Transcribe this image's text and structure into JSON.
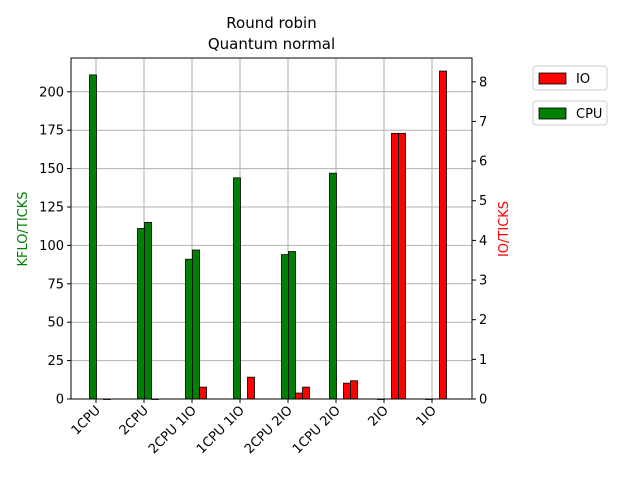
{
  "chart_data": {
    "type": "bar",
    "title": [
      "Round robin",
      "Quantum normal"
    ],
    "ylabel_left": "KFLO/TICKS",
    "ylabel_right": "IO/TICKS",
    "left_color": "#008000",
    "right_color": "#ff0000",
    "ylim_left": [
      0,
      222
    ],
    "ylim_right": [
      0,
      8.6
    ],
    "yticks_left": [
      0,
      25,
      50,
      75,
      100,
      125,
      150,
      175,
      200
    ],
    "yticks_right": [
      0,
      1,
      2,
      3,
      4,
      5,
      6,
      7,
      8
    ],
    "grid": true,
    "legend_position": "outside-right",
    "legend": [
      {
        "name": "IO",
        "color": "#ff0000"
      },
      {
        "name": "CPU",
        "color": "#008000"
      }
    ],
    "categories": [
      "1CPU",
      "2CPU",
      "2CPU 1IO",
      "1CPU 1IO",
      "2CPU 2IO",
      "1CPU 2IO",
      "2IO",
      "1IO"
    ],
    "groups": [
      {
        "cpu": [
          211
        ],
        "io": [
          0
        ]
      },
      {
        "cpu": [
          111,
          115
        ],
        "io": [
          0
        ]
      },
      {
        "cpu": [
          91,
          97
        ],
        "io": [
          0.3
        ]
      },
      {
        "cpu": [
          144
        ],
        "io": [
          0.55
        ]
      },
      {
        "cpu": [
          94,
          96
        ],
        "io": [
          0.15,
          0.3
        ]
      },
      {
        "cpu": [
          147
        ],
        "io": [
          0.4,
          0.46
        ]
      },
      {
        "cpu": [
          0
        ],
        "io": [
          6.7,
          6.7
        ]
      },
      {
        "cpu": [
          0
        ],
        "io": [
          8.27
        ]
      }
    ]
  }
}
